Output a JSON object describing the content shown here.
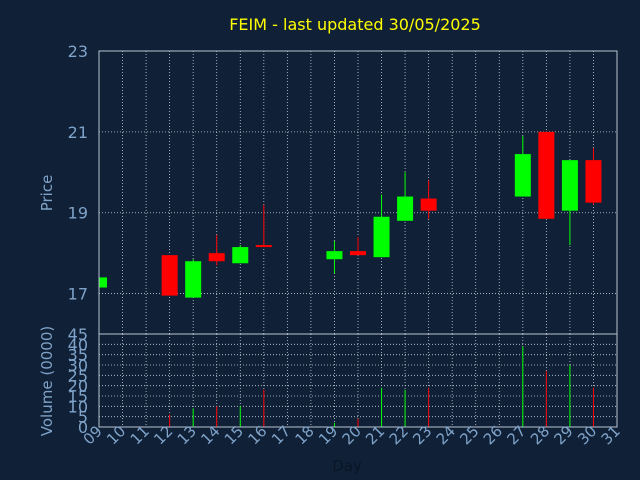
{
  "chart_data": {
    "type": "candlestick",
    "title": "FEIM - last updated 30/05/2025",
    "xlabel": "Day",
    "x_ticks": [
      "09",
      "10",
      "11",
      "12",
      "13",
      "14",
      "15",
      "16",
      "17",
      "18",
      "19",
      "20",
      "21",
      "22",
      "23",
      "24",
      "25",
      "26",
      "27",
      "28",
      "29",
      "30",
      "31"
    ],
    "price_panel": {
      "ylabel": "Price",
      "ylim": [
        16,
        23
      ],
      "y_ticks": [
        "23",
        "21",
        "19",
        "17"
      ],
      "grid": true,
      "candles": [
        {
          "day": "09",
          "open": 17.15,
          "high": 17.4,
          "low": 17.1,
          "close": 17.4
        },
        {
          "day": "12",
          "open": 17.95,
          "high": 17.95,
          "low": 16.95,
          "close": 16.95
        },
        {
          "day": "13",
          "open": 16.9,
          "high": 17.85,
          "low": 16.9,
          "close": 17.8
        },
        {
          "day": "14",
          "open": 18.0,
          "high": 18.45,
          "low": 17.7,
          "close": 17.8
        },
        {
          "day": "15",
          "open": 17.75,
          "high": 18.2,
          "low": 17.75,
          "close": 18.15
        },
        {
          "day": "16",
          "open": 18.2,
          "high": 19.2,
          "low": 18.15,
          "close": 18.15
        },
        {
          "day": "19",
          "open": 17.85,
          "high": 18.3,
          "low": 17.5,
          "close": 18.05
        },
        {
          "day": "20",
          "open": 18.05,
          "high": 18.4,
          "low": 17.95,
          "close": 17.95
        },
        {
          "day": "21",
          "open": 17.9,
          "high": 19.45,
          "low": 17.9,
          "close": 18.9
        },
        {
          "day": "22",
          "open": 18.8,
          "high": 20.0,
          "low": 18.8,
          "close": 19.4
        },
        {
          "day": "23",
          "open": 19.35,
          "high": 19.8,
          "low": 18.85,
          "close": 19.05
        },
        {
          "day": "27",
          "open": 19.4,
          "high": 20.9,
          "low": 19.4,
          "close": 20.45
        },
        {
          "day": "28",
          "open": 21.0,
          "high": 21.0,
          "low": 18.85,
          "close": 18.85
        },
        {
          "day": "29",
          "open": 19.05,
          "high": 20.3,
          "low": 18.2,
          "close": 20.3
        },
        {
          "day": "30",
          "open": 20.3,
          "high": 20.6,
          "low": 19.2,
          "close": 19.25
        }
      ]
    },
    "volume_panel": {
      "ylabel": "Volume (0000)",
      "ylim": [
        0,
        45
      ],
      "y_ticks": [
        "45",
        "40",
        "35",
        "30",
        "25",
        "20",
        "15",
        "10",
        "5",
        "0"
      ],
      "grid": true,
      "bars": [
        {
          "day": "12",
          "value": 6
        },
        {
          "day": "13",
          "value": 9
        },
        {
          "day": "14",
          "value": 10
        },
        {
          "day": "15",
          "value": 10
        },
        {
          "day": "16",
          "value": 18
        },
        {
          "day": "19",
          "value": 2
        },
        {
          "day": "20",
          "value": 4
        },
        {
          "day": "21",
          "value": 19
        },
        {
          "day": "22",
          "value": 18
        },
        {
          "day": "23",
          "value": 19
        },
        {
          "day": "27",
          "value": 39
        },
        {
          "day": "28",
          "value": 27
        },
        {
          "day": "29",
          "value": 30
        },
        {
          "day": "30",
          "value": 19
        }
      ]
    },
    "colors": {
      "background": "#102037",
      "up": "#00ff00",
      "down": "#ff0000",
      "title": "#ffff00",
      "axis_text": "#7fa3c9",
      "frame": "#b8c4d0",
      "grid": "#c8d0d8"
    }
  }
}
